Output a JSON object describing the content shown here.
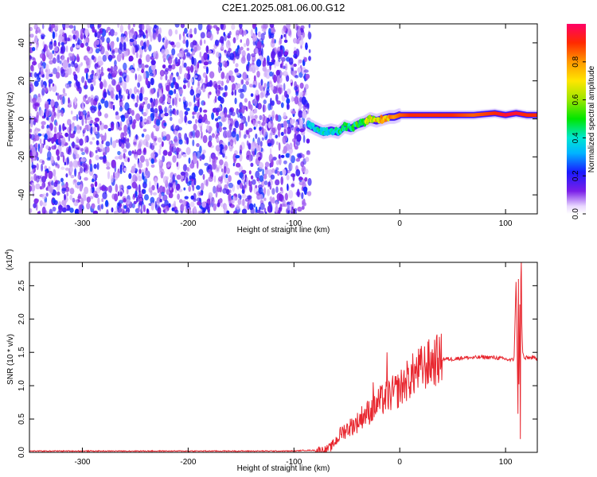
{
  "title": "C2E1.2025.081.06.00.G12",
  "colors": {
    "snr_line": "#e8262e",
    "spectrogram_noise": "#7a1ee8",
    "axis": "#000000"
  },
  "chart_data": [
    {
      "type": "heatmap",
      "xlabel": "Height of straight line (km)",
      "ylabel": "Frequency (Hz)",
      "xlim": [
        -350,
        130
      ],
      "ylim": [
        -50,
        50
      ],
      "x_ticks": [
        -300,
        -200,
        -100,
        0,
        100
      ],
      "y_ticks": [
        -40,
        -20,
        0,
        20,
        40
      ],
      "grid": false,
      "colorbar": {
        "label": "Normalized spectral amplitude",
        "range": [
          0,
          1
        ],
        "ticks": [
          0.0,
          0.2,
          0.4,
          0.6,
          0.8
        ]
      },
      "regions": [
        {
          "name": "noise",
          "x_range": [
            -350,
            -85
          ],
          "freq_range": [
            -50,
            50
          ],
          "amplitude_range": [
            0.05,
            0.25
          ]
        },
        {
          "name": "signal",
          "x_range": [
            -87,
            130
          ],
          "freq_range": [
            -10,
            5
          ],
          "amplitude_range": [
            0.3,
            1.0
          ]
        }
      ],
      "signal_track": {
        "x": [
          -87,
          -80,
          -72,
          -65,
          -58,
          -52,
          -46,
          -40,
          -34,
          -28,
          -22,
          -16,
          -10,
          -5,
          0,
          10,
          30,
          50,
          70,
          90,
          100,
          110,
          120,
          130
        ],
        "freq": [
          -3,
          -5,
          -7,
          -6,
          -7,
          -4,
          -5,
          -3,
          -2,
          0,
          -1,
          0,
          1,
          1,
          2,
          2,
          2,
          2,
          2,
          3,
          2,
          3,
          2,
          2
        ],
        "amplitude": [
          0.35,
          0.4,
          0.45,
          0.4,
          0.45,
          0.5,
          0.5,
          0.55,
          0.6,
          0.7,
          0.75,
          0.8,
          0.85,
          0.8,
          0.85,
          0.9,
          0.9,
          0.9,
          0.85,
          0.9,
          0.95,
          0.95,
          0.9,
          0.9
        ]
      }
    },
    {
      "type": "line",
      "xlabel": "Height of straight line (km)",
      "ylabel": "SNR (10 * v/v)",
      "yscale_label": "(x10",
      "yscale_exponent": "4",
      "xlim": [
        -350,
        130
      ],
      "ylim": [
        0,
        2.85
      ],
      "x_ticks": [
        -300,
        -200,
        -100,
        0,
        100
      ],
      "y_ticks": [
        0.0,
        0.5,
        1.0,
        1.5,
        2.0,
        2.5
      ],
      "grid": false,
      "series": [
        {
          "x": [
            -350,
            -300,
            -250,
            -200,
            -150,
            -100,
            -90,
            -80,
            -70,
            -65,
            -60,
            -55,
            -50,
            -45,
            -40,
            -35,
            -30,
            -25,
            -20,
            -15,
            -10,
            -5,
            0,
            5,
            10,
            15,
            20,
            25,
            30,
            35,
            40,
            50,
            60,
            70,
            80,
            90,
            100,
            105,
            108,
            110,
            112,
            114,
            116,
            118,
            120,
            125,
            130
          ],
          "y": [
            0.02,
            0.02,
            0.02,
            0.02,
            0.02,
            0.02,
            0.03,
            0.03,
            0.04,
            0.08,
            0.18,
            0.3,
            0.35,
            0.4,
            0.45,
            0.55,
            0.6,
            0.65,
            0.75,
            0.8,
            0.85,
            0.9,
            0.95,
            1.05,
            1.12,
            1.2,
            1.25,
            1.3,
            1.35,
            1.38,
            1.4,
            1.4,
            1.42,
            1.42,
            1.43,
            1.42,
            1.4,
            1.38,
            1.4,
            2.6,
            0.25,
            2.85,
            1.5,
            1.4,
            1.42,
            1.42,
            1.4
          ],
          "spikes": [
            {
              "x": -25,
              "y": 1.05
            },
            {
              "x": -12,
              "y": 1.5
            },
            {
              "x": 112,
              "y": 2.6
            },
            {
              "x": 115,
              "y": 2.85
            },
            {
              "x": 114,
              "y": 0.2
            }
          ]
        }
      ]
    }
  ]
}
